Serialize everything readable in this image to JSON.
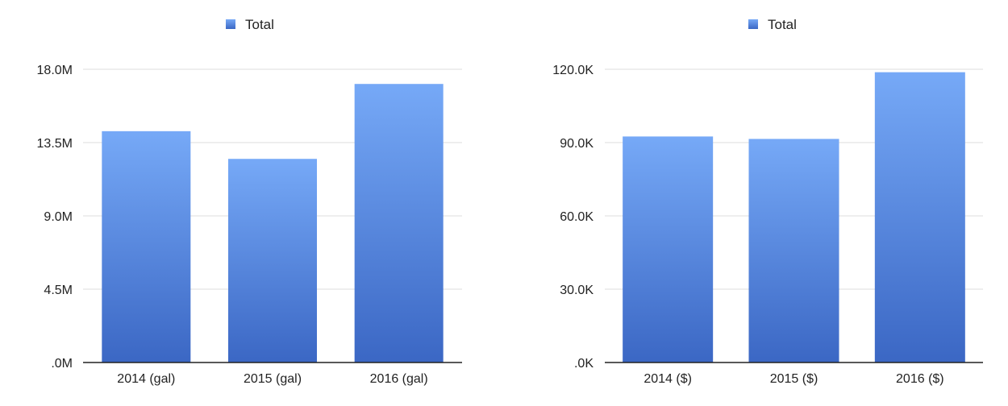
{
  "chart_data": [
    {
      "type": "bar",
      "categories": [
        "2014 (gal)",
        "2015 (gal)",
        "2016 (gal)"
      ],
      "series": [
        {
          "name": "Total",
          "values": [
            14.2,
            12.5,
            17.1
          ],
          "color": "#4a7fd6"
        }
      ],
      "unit": "M",
      "ylim": [
        0,
        18
      ],
      "yticks": [
        0,
        4.5,
        9,
        13.5,
        18
      ],
      "ytick_labels": [
        ".0M",
        "4.5M",
        "9.0M",
        "13.5M",
        "18.0M"
      ],
      "grid": true,
      "legend_position": "top-center"
    },
    {
      "type": "bar",
      "categories": [
        "2014 ($)",
        "2015 ($)",
        "2016 ($)"
      ],
      "series": [
        {
          "name": "Total",
          "values": [
            92.5,
            91.5,
            118.8
          ],
          "color": "#4a7fd6"
        }
      ],
      "unit": "K",
      "ylim": [
        0,
        120
      ],
      "yticks": [
        0,
        30,
        60,
        90,
        120
      ],
      "ytick_labels": [
        ".0K",
        "30.0K",
        "60.0K",
        "90.0K",
        "120.0K"
      ],
      "grid": true,
      "legend_position": "top-center"
    }
  ]
}
